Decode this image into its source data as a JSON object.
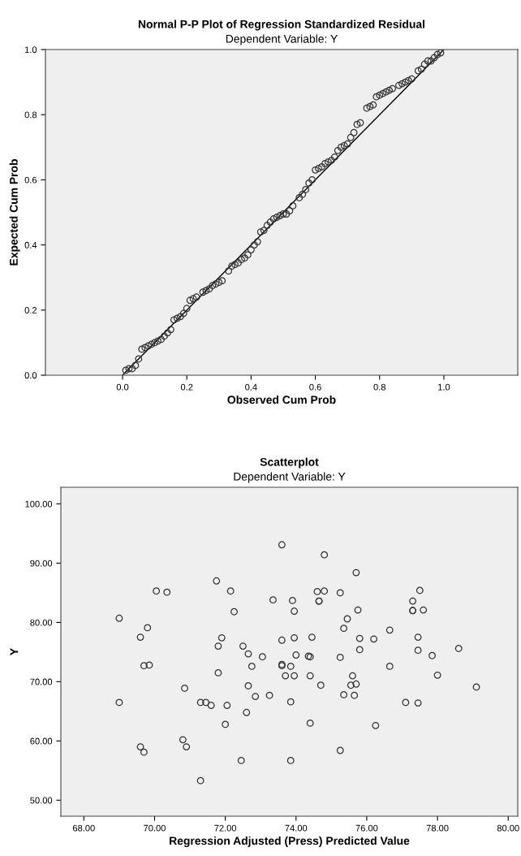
{
  "chart_data": [
    {
      "type": "scatter",
      "title": "Normal P-P Plot of Regression Standardized Residual",
      "subtitle": "Dependent Variable: Y",
      "xlabel": "Observed Cum Prob",
      "ylabel": "Expected Cum Prob",
      "xlim": [
        -0.24,
        1.23
      ],
      "ylim": [
        0,
        1
      ],
      "xticks": [
        {
          "value": 0,
          "label": "0.0"
        },
        {
          "value": 0.2,
          "label": "0.2"
        },
        {
          "value": 0.4,
          "label": "0.4"
        },
        {
          "value": 0.6,
          "label": "0.6"
        },
        {
          "value": 0.8,
          "label": "0.8"
        },
        {
          "value": 1,
          "label": "1.0"
        }
      ],
      "yticks": [
        {
          "value": 0,
          "label": "0.0"
        },
        {
          "value": 0.2,
          "label": "0.2"
        },
        {
          "value": 0.4,
          "label": "0.4"
        },
        {
          "value": 0.6,
          "label": "0.6"
        },
        {
          "value": 0.8,
          "label": "0.8"
        },
        {
          "value": 1,
          "label": "1.0"
        }
      ],
      "grid": false,
      "marker": "circle",
      "series": [
        {
          "color": "#333333",
          "x": [
            0.01,
            0.02,
            0.03,
            0.04,
            0.05,
            0.06,
            0.07,
            0.08,
            0.09,
            0.1,
            0.11,
            0.12,
            0.13,
            0.14,
            0.15,
            0.16,
            0.17,
            0.18,
            0.19,
            0.2,
            0.21,
            0.22,
            0.23,
            0.25,
            0.26,
            0.27,
            0.28,
            0.29,
            0.3,
            0.31,
            0.33,
            0.34,
            0.35,
            0.36,
            0.37,
            0.38,
            0.39,
            0.4,
            0.41,
            0.42,
            0.43,
            0.44,
            0.45,
            0.46,
            0.47,
            0.48,
            0.49,
            0.5,
            0.51,
            0.52,
            0.53,
            0.55,
            0.56,
            0.57,
            0.58,
            0.59,
            0.6,
            0.61,
            0.62,
            0.63,
            0.64,
            0.65,
            0.66,
            0.67,
            0.68,
            0.69,
            0.7,
            0.71,
            0.72,
            0.73,
            0.74,
            0.76,
            0.77,
            0.78,
            0.79,
            0.8,
            0.81,
            0.82,
            0.83,
            0.84,
            0.86,
            0.87,
            0.88,
            0.89,
            0.9,
            0.92,
            0.93,
            0.94,
            0.95,
            0.96,
            0.97,
            0.98,
            0.99
          ],
          "values": [
            0.015,
            0.02,
            0.02,
            0.03,
            0.05,
            0.08,
            0.085,
            0.09,
            0.095,
            0.1,
            0.105,
            0.11,
            0.12,
            0.13,
            0.14,
            0.17,
            0.175,
            0.18,
            0.19,
            0.205,
            0.23,
            0.235,
            0.24,
            0.255,
            0.26,
            0.265,
            0.275,
            0.28,
            0.285,
            0.29,
            0.32,
            0.335,
            0.34,
            0.345,
            0.355,
            0.36,
            0.37,
            0.385,
            0.4,
            0.41,
            0.44,
            0.445,
            0.46,
            0.47,
            0.48,
            0.485,
            0.49,
            0.495,
            0.495,
            0.505,
            0.52,
            0.545,
            0.555,
            0.57,
            0.59,
            0.6,
            0.63,
            0.635,
            0.64,
            0.65,
            0.655,
            0.66,
            0.67,
            0.69,
            0.7,
            0.705,
            0.71,
            0.73,
            0.745,
            0.77,
            0.775,
            0.82,
            0.825,
            0.83,
            0.855,
            0.86,
            0.865,
            0.87,
            0.875,
            0.88,
            0.89,
            0.895,
            0.9,
            0.905,
            0.91,
            0.935,
            0.94,
            0.955,
            0.965,
            0.965,
            0.975,
            0.985,
            0.99
          ]
        },
        {
          "type": "line",
          "color": "#000000",
          "marker": "none",
          "x": [
            0,
            1
          ],
          "values": [
            0,
            1
          ]
        }
      ]
    },
    {
      "type": "scatter",
      "title": "Scatterplot",
      "subtitle": "Dependent Variable: Y",
      "xlabel": "Regression Adjusted (Press) Predicted Value",
      "ylabel": "Y",
      "xlim": [
        67.35,
        80.27
      ],
      "ylim": [
        47.3,
        102.8
      ],
      "xticks": [
        {
          "value": 68,
          "label": "68.00"
        },
        {
          "value": 70,
          "label": "70.00"
        },
        {
          "value": 72,
          "label": "72.00"
        },
        {
          "value": 74,
          "label": "74.00"
        },
        {
          "value": 76,
          "label": "76.00"
        },
        {
          "value": 78,
          "label": "78.00"
        },
        {
          "value": 80,
          "label": "80.00"
        }
      ],
      "yticks": [
        {
          "value": 50,
          "label": "50.00"
        },
        {
          "value": 60,
          "label": "60.00"
        },
        {
          "value": 70,
          "label": "70.00"
        },
        {
          "value": 80,
          "label": "80.00"
        },
        {
          "value": 90,
          "label": "90.00"
        },
        {
          "value": 100,
          "label": "100.00"
        }
      ],
      "grid": false,
      "marker": "circle",
      "series": [
        {
          "color": "#333333",
          "x": [
            69.0,
            69.0,
            69.6,
            69.6,
            69.7,
            69.7,
            69.8,
            69.85,
            70.05,
            70.35,
            70.8,
            70.85,
            70.9,
            71.3,
            71.3,
            71.45,
            71.6,
            71.75,
            71.8,
            71.8,
            71.9,
            72.0,
            72.05,
            72.15,
            72.25,
            72.45,
            72.5,
            72.6,
            72.65,
            72.65,
            72.75,
            72.85,
            73.05,
            73.25,
            73.35,
            73.6,
            73.6,
            73.6,
            73.6,
            73.7,
            73.85,
            73.85,
            73.85,
            73.9,
            73.95,
            73.95,
            73.95,
            74.0,
            74.35,
            74.4,
            74.4,
            74.4,
            74.45,
            74.6,
            74.65,
            74.65,
            74.7,
            74.8,
            74.8,
            75.25,
            75.25,
            75.25,
            75.35,
            75.35,
            75.45,
            75.55,
            75.6,
            75.65,
            75.7,
            75.7,
            75.75,
            75.8,
            75.8,
            76.2,
            76.25,
            76.65,
            76.65,
            77.1,
            77.3,
            77.3,
            77.3,
            77.45,
            77.45,
            77.45,
            77.5,
            77.6,
            77.85,
            78.0,
            78.6,
            79.1
          ],
          "values": [
            80.7,
            66.5,
            77.5,
            59.0,
            58.1,
            72.7,
            79.1,
            72.8,
            85.3,
            85.1,
            60.2,
            68.9,
            59.0,
            53.3,
            66.5,
            66.5,
            66.0,
            87.0,
            76.0,
            71.5,
            77.4,
            62.8,
            66.0,
            85.3,
            81.8,
            56.7,
            76.0,
            64.8,
            69.3,
            74.7,
            72.6,
            67.5,
            74.2,
            67.7,
            83.8,
            93.1,
            72.9,
            72.7,
            77.0,
            71.0,
            66.6,
            56.7,
            72.6,
            83.7,
            81.9,
            71.0,
            77.4,
            74.5,
            74.3,
            74.2,
            71.0,
            63.0,
            77.5,
            85.2,
            83.6,
            83.6,
            69.4,
            91.4,
            85.3,
            85.0,
            74.1,
            58.4,
            79.0,
            67.8,
            80.6,
            69.4,
            71.0,
            67.7,
            69.6,
            88.4,
            82.1,
            75.4,
            77.3,
            77.2,
            62.6,
            78.7,
            72.6,
            66.5,
            83.6,
            82.0,
            82.0,
            77.5,
            75.3,
            66.4,
            85.4,
            82.1,
            74.4,
            71.1,
            75.6,
            69.1
          ]
        }
      ]
    }
  ]
}
